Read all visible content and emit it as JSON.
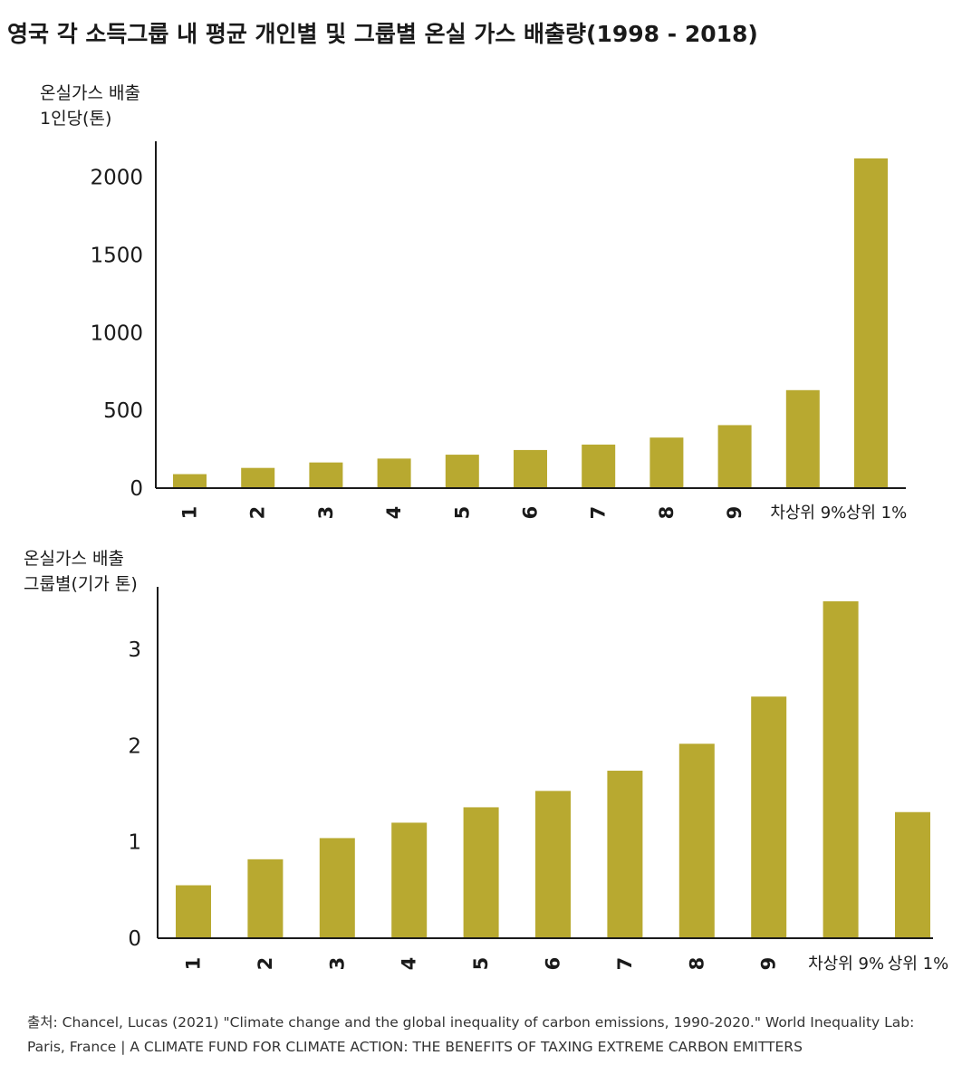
{
  "title": "영국 각 소득그룹 내 평균 개인별 및 그룹별 온실 가스 배출량(1998 - 2018)",
  "colors": {
    "bar": "#b8a930",
    "axis": "#1a1a1a"
  },
  "chart_data": [
    {
      "type": "bar",
      "ylabel": [
        "온실가스 배출",
        "1인당(톤)"
      ],
      "categories": [
        "1",
        "2",
        "3",
        "4",
        "5",
        "6",
        "7",
        "8",
        "9",
        "차상위 9%",
        "상위 1%"
      ],
      "values": [
        90,
        130,
        165,
        190,
        215,
        245,
        280,
        325,
        405,
        630,
        2120
      ],
      "yticks": [
        0,
        500,
        1000,
        1500,
        2000
      ],
      "ylim": [
        0,
        2230
      ]
    },
    {
      "type": "bar",
      "ylabel": [
        "온실가스 배출",
        "그룹별(기가 톤)"
      ],
      "categories": [
        "1",
        "2",
        "3",
        "4",
        "5",
        "6",
        "7",
        "8",
        "9",
        "차상위 9%",
        "상위 1%"
      ],
      "values": [
        0.55,
        0.82,
        1.04,
        1.2,
        1.36,
        1.53,
        1.74,
        2.02,
        2.51,
        3.5,
        1.31
      ],
      "yticks": [
        0,
        1,
        2,
        3
      ],
      "ylim": [
        0,
        3.65
      ]
    }
  ],
  "source": {
    "line1": "출처: Chancel, Lucas (2021) \"Climate change and the global inequality of carbon emissions, 1990-2020.\" World Inequality Lab:",
    "line2": "Paris, France  | A CLIMATE FUND FOR CLIMATE  ACTION: THE BENEFITS OF TAXING EXTREME CARBON EMITTERS"
  }
}
